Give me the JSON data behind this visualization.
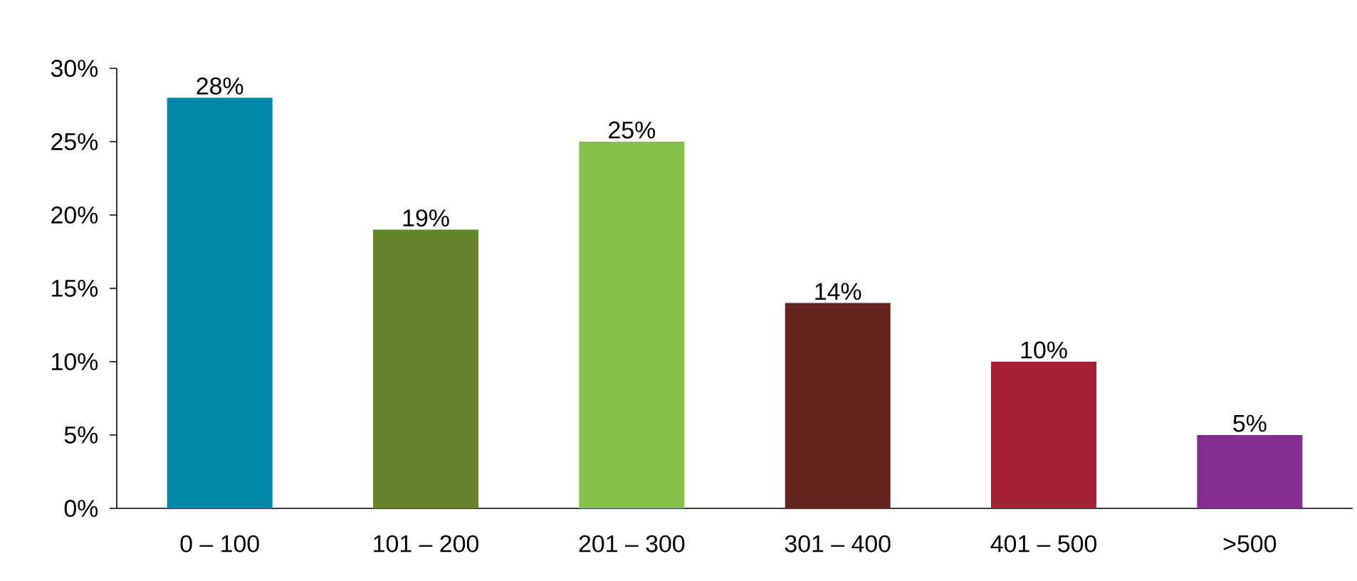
{
  "chart_data": {
    "type": "bar",
    "categories": [
      "0 – 100",
      "101 – 200",
      "201 – 300",
      "301 – 400",
      "401 – 500",
      ">500"
    ],
    "values": [
      28,
      19,
      25,
      14,
      10,
      5
    ],
    "colors": [
      "#0088a8",
      "#65832a",
      "#86c14a",
      "#66241c",
      "#a42238",
      "#852c91"
    ],
    "value_labels": [
      "28%",
      "19%",
      "25%",
      "14%",
      "10%",
      "5%"
    ],
    "ylim": [
      0,
      30
    ],
    "yticks": [
      {
        "value": 0,
        "label": "0%"
      },
      {
        "value": 5,
        "label": "5%"
      },
      {
        "value": 10,
        "label": "10%"
      },
      {
        "value": 15,
        "label": "15%"
      },
      {
        "value": 20,
        "label": "20%"
      },
      {
        "value": 25,
        "label": "25%"
      },
      {
        "value": 30,
        "label": "30%"
      }
    ],
    "grid": false
  }
}
